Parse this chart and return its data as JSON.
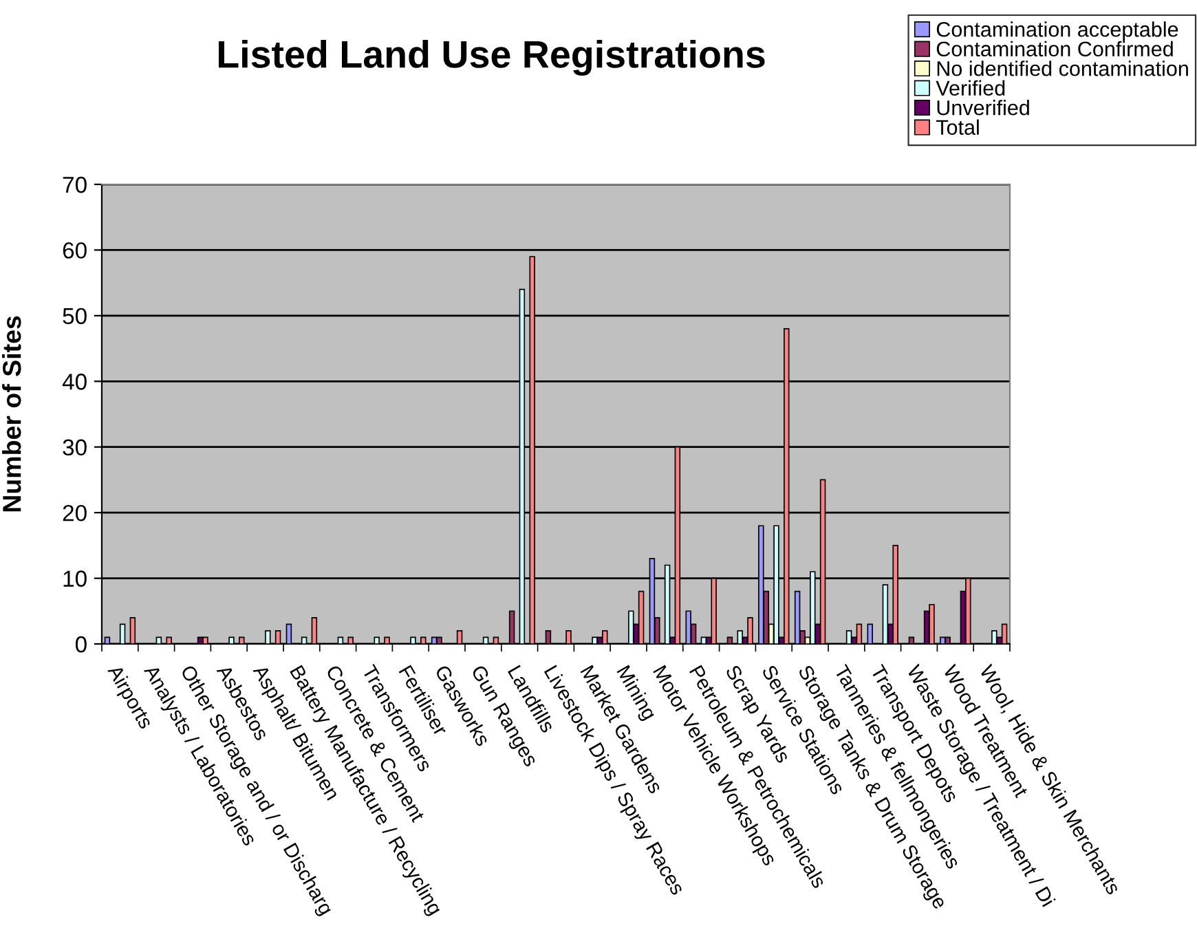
{
  "chart_data": {
    "type": "bar",
    "title": "Listed Land Use Registrations",
    "ylabel": "Number of Sites",
    "categories": [
      "Airports",
      "Analysts / Laboratories",
      "Other Storage and / or Discharg",
      "Asbestos",
      "Asphalt/ Bitumen",
      "Battery Manufacture / Recycling",
      "Concrete & Cement",
      "Transformers",
      "Fertiliser",
      "Gasworks",
      "Gun Ranges",
      "Landfills",
      "Livestock Dips / Spray Races",
      "Market Gardens",
      "Mining",
      "Motor Vehicle Workshops",
      "Petroleum & Petrochemicals",
      "Scrap Yards",
      "Service Stations",
      "Storage Tanks & Drum Storage",
      "Tanneries & fellmongeries",
      "Transport Depots",
      "Waste Storage / Treatment / Di",
      "Wood Treatment",
      "Wool, Hide & Skin Merchants"
    ],
    "series": [
      {
        "name": "Contamination acceptable",
        "color": "#9999ff",
        "values": [
          1,
          null,
          null,
          null,
          null,
          3,
          null,
          null,
          null,
          1,
          null,
          null,
          null,
          null,
          null,
          13,
          5,
          null,
          18,
          8,
          null,
          3,
          null,
          1,
          null
        ]
      },
      {
        "name": "Contamination Confirmed",
        "color": "#993366",
        "values": [
          null,
          null,
          null,
          null,
          null,
          null,
          null,
          null,
          null,
          1,
          null,
          5,
          2,
          null,
          null,
          4,
          3,
          1,
          8,
          2,
          null,
          null,
          1,
          1,
          null
        ]
      },
      {
        "name": "No identified contamination",
        "color": "#ffffcc",
        "values": [
          null,
          null,
          null,
          null,
          null,
          null,
          null,
          null,
          null,
          null,
          null,
          null,
          null,
          null,
          null,
          null,
          null,
          null,
          3,
          1,
          null,
          null,
          null,
          null,
          null
        ]
      },
      {
        "name": "Verified",
        "color": "#ccffff",
        "values": [
          3,
          1,
          null,
          1,
          2,
          1,
          1,
          1,
          1,
          null,
          1,
          54,
          null,
          1,
          5,
          12,
          1,
          2,
          18,
          11,
          2,
          9,
          null,
          null,
          2
        ]
      },
      {
        "name": "Unverified",
        "color": "#660066",
        "values": [
          null,
          null,
          1,
          null,
          null,
          null,
          null,
          null,
          null,
          null,
          null,
          null,
          null,
          1,
          3,
          1,
          1,
          1,
          1,
          3,
          1,
          3,
          5,
          8,
          1
        ]
      },
      {
        "name": "Total",
        "color": "#ff8080",
        "values": [
          4,
          1,
          1,
          1,
          2,
          4,
          1,
          1,
          1,
          2,
          1,
          59,
          2,
          2,
          8,
          30,
          10,
          4,
          48,
          25,
          3,
          15,
          6,
          10,
          3
        ]
      }
    ],
    "ylim": [
      0,
      70
    ],
    "yticks": [
      0,
      10,
      20,
      30,
      40,
      50,
      60,
      70
    ],
    "grid": "y",
    "legend": "top right"
  }
}
